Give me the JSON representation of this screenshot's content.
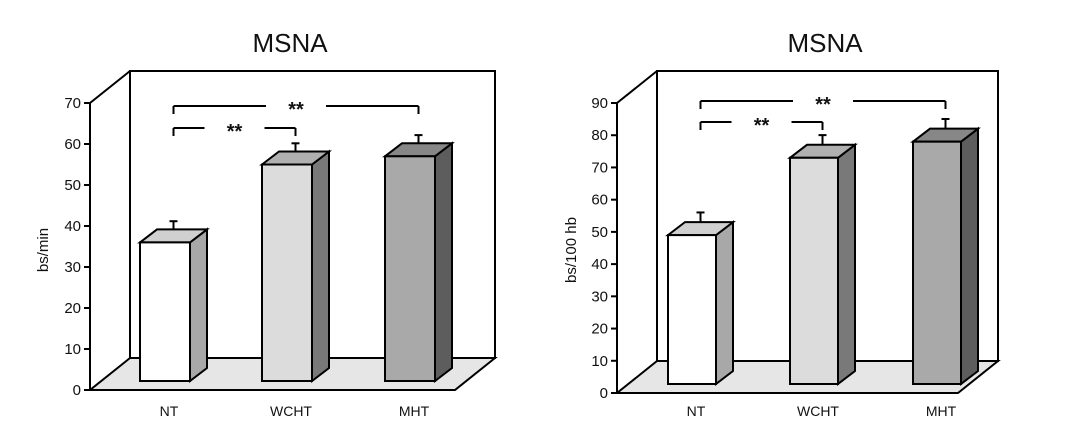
{
  "chart_data": [
    {
      "type": "bar",
      "title": "MSNA",
      "ylabel": "bs/min",
      "xlabel": "",
      "categories": [
        "NT",
        "WCHT",
        "MHT"
      ],
      "values": [
        36,
        55,
        57
      ],
      "errors": [
        2,
        2,
        2
      ],
      "ylim": [
        0,
        70
      ],
      "yticks": [
        "0",
        "10",
        "20",
        "30",
        "40",
        "50",
        "60",
        "70"
      ],
      "significance": [
        {
          "from": "NT",
          "to": "WCHT",
          "label": "**"
        },
        {
          "from": "NT",
          "to": "MHT",
          "label": "**"
        }
      ],
      "bar_colors": [
        "#ffffff",
        "#dcdcdc",
        "#a9a9a9"
      ],
      "grid": false,
      "legend": "none"
    },
    {
      "type": "bar",
      "title": "MSNA",
      "ylabel": "bs/100 hb",
      "xlabel": "",
      "categories": [
        "NT",
        "WCHT",
        "MHT"
      ],
      "values": [
        49,
        73,
        78
      ],
      "errors": [
        3,
        3,
        3
      ],
      "ylim": [
        0,
        90
      ],
      "yticks": [
        "0",
        "10",
        "20",
        "30",
        "40",
        "50",
        "60",
        "70",
        "80",
        "90"
      ],
      "significance": [
        {
          "from": "NT",
          "to": "WCHT",
          "label": "**"
        },
        {
          "from": "NT",
          "to": "MHT",
          "label": "**"
        }
      ],
      "bar_colors": [
        "#ffffff",
        "#dcdcdc",
        "#a9a9a9"
      ],
      "grid": false,
      "legend": "none"
    }
  ]
}
